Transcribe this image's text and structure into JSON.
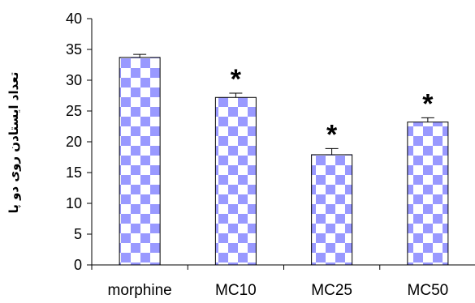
{
  "chart_data": {
    "type": "bar",
    "title": "",
    "xlabel": "",
    "ylabel": "تعداد ایستادن روی دو پا",
    "ylim": [
      0,
      40
    ],
    "yticks": [
      0,
      5,
      10,
      15,
      20,
      25,
      30,
      35,
      40
    ],
    "categories": [
      "morphine",
      "MC10",
      "MC25",
      "MC50"
    ],
    "values": [
      33.7,
      27.2,
      17.9,
      23.2
    ],
    "errors": [
      0.5,
      0.7,
      1.0,
      0.7
    ],
    "annotations": [
      "",
      "*",
      "*",
      "*"
    ],
    "grid": false,
    "legend": "none",
    "colors": {
      "bar_fill": "#9999ff",
      "bar_alt": "#ffffff",
      "axis": "#000000"
    }
  }
}
